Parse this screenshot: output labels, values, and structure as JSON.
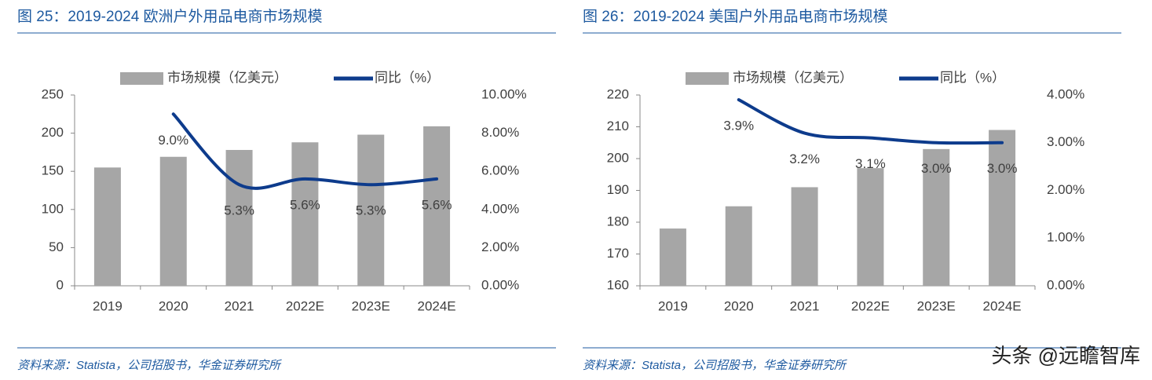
{
  "watermark": "头条 @远瞻智库",
  "chart_data": [
    {
      "type": "bar",
      "title": "图 25：2019-2024 欧洲户外用品电商市场规模",
      "source": "资料来源：Statista，公司招股书，华金证券研究所",
      "legend": "top",
      "categories": [
        "2019",
        "2020",
        "2021",
        "2022E",
        "2023E",
        "2024E"
      ],
      "series": [
        {
          "name": "市场规模（亿美元）",
          "color": "#a6a6a6",
          "values": [
            155,
            169,
            178,
            188,
            198,
            209
          ]
        },
        {
          "name": "同比（%）",
          "type": "line",
          "axis": "y2",
          "color": "#0d3b8c",
          "values": [
            null,
            9.0,
            5.3,
            5.6,
            5.3,
            5.6
          ],
          "value_labels": [
            null,
            "9.0%",
            "5.3%",
            "5.6%",
            "5.3%",
            "5.6%"
          ]
        }
      ],
      "ylim": [
        0,
        250
      ],
      "yticks": [
        0,
        50,
        100,
        150,
        200,
        250
      ],
      "y2lim": [
        0,
        10
      ],
      "y2ticks": [
        {
          "value": 0,
          "label": "0.00%"
        },
        {
          "value": 2,
          "label": "2.00%"
        },
        {
          "value": 4,
          "label": "4.00%"
        },
        {
          "value": 6,
          "label": "6.00%"
        },
        {
          "value": 8,
          "label": "8.00%"
        },
        {
          "value": 10,
          "label": "10.00%"
        }
      ]
    },
    {
      "type": "bar",
      "title": "图 26：2019-2024 美国户外用品电商市场规模",
      "source": "资料来源：Statista，公司招股书，华金证券研究所",
      "legend": "top",
      "categories": [
        "2019",
        "2020",
        "2021",
        "2022E",
        "2023E",
        "2024E"
      ],
      "series": [
        {
          "name": "市场规模（亿美元）",
          "color": "#a6a6a6",
          "values": [
            178,
            185,
            191,
            197,
            203,
            209
          ]
        },
        {
          "name": "同比（%）",
          "type": "line",
          "axis": "y2",
          "color": "#0d3b8c",
          "values": [
            null,
            3.9,
            3.2,
            3.1,
            3.0,
            3.0
          ],
          "value_labels": [
            null,
            "3.9%",
            "3.2%",
            "3.1%",
            "3.0%",
            "3.0%"
          ]
        }
      ],
      "ylim": [
        160,
        220
      ],
      "yticks": [
        160,
        170,
        180,
        190,
        200,
        210,
        220
      ],
      "y2lim": [
        0,
        4
      ],
      "y2ticks": [
        {
          "value": 0,
          "label": "0.00%"
        },
        {
          "value": 1,
          "label": "1.00%"
        },
        {
          "value": 2,
          "label": "2.00%"
        },
        {
          "value": 3,
          "label": "3.00%"
        },
        {
          "value": 4,
          "label": "4.00%"
        }
      ]
    }
  ]
}
